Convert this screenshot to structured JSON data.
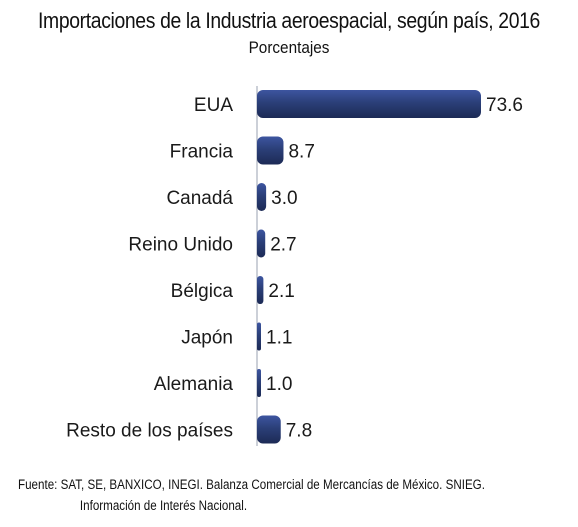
{
  "chart_data": {
    "type": "bar",
    "orientation": "horizontal",
    "title": "Importaciones de la Industria aeroespacial, según país, 2016",
    "subtitle": "Porcentajes",
    "categories": [
      "EUA",
      "Francia",
      "Canadá",
      "Reino Unido",
      "Bélgica",
      "Japón",
      "Alemania",
      "Resto de los países"
    ],
    "values": [
      73.6,
      8.7,
      3.0,
      2.7,
      2.1,
      1.1,
      1.0,
      7.8
    ],
    "value_labels": [
      "73.6",
      "8.7",
      "3.0",
      "2.7",
      "2.1",
      "1.1",
      "1.0",
      "7.8"
    ],
    "xlim": [
      0,
      73.6
    ],
    "grid": false,
    "bar_color": "#2b3f78"
  },
  "footer": {
    "source_line1": "Fuente: SAT, SE, BANXICO, INEGI. Balanza Comercial de Mercancías de México. SNIEG.",
    "source_line2": "Información de Interés Nacional."
  }
}
